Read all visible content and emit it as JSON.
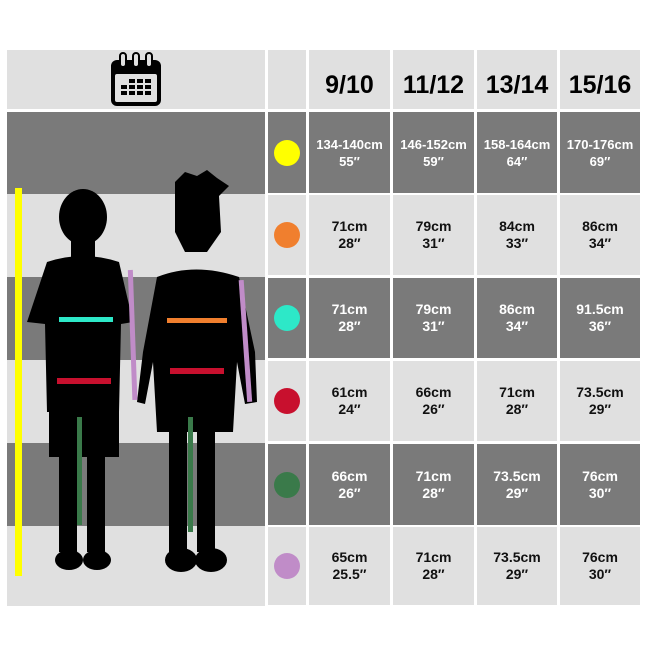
{
  "header": {
    "icon": "calendar-icon",
    "sizes": [
      "9/10",
      "11/12",
      "13/14",
      "15/16"
    ]
  },
  "rows": [
    {
      "color": "#ffff00",
      "values": [
        [
          "134-140cm",
          "55″"
        ],
        [
          "146-152cm",
          "59″"
        ],
        [
          "158-164cm",
          "64″"
        ],
        [
          "170-176cm",
          "69″"
        ]
      ]
    },
    {
      "color": "#f07f2e",
      "values": [
        [
          "71cm",
          "28″"
        ],
        [
          "79cm",
          "31″"
        ],
        [
          "84cm",
          "33″"
        ],
        [
          "86cm",
          "34″"
        ]
      ]
    },
    {
      "color": "#2de8c8",
      "values": [
        [
          "71cm",
          "28″"
        ],
        [
          "79cm",
          "31″"
        ],
        [
          "86cm",
          "34″"
        ],
        [
          "91.5cm",
          "36″"
        ]
      ]
    },
    {
      "color": "#c8102e",
      "values": [
        [
          "61cm",
          "24″"
        ],
        [
          "66cm",
          "26″"
        ],
        [
          "71cm",
          "28″"
        ],
        [
          "73.5cm",
          "29″"
        ]
      ]
    },
    {
      "color": "#3a7a4a",
      "values": [
        [
          "66cm",
          "26″"
        ],
        [
          "71cm",
          "28″"
        ],
        [
          "73.5cm",
          "29″"
        ],
        [
          "76cm",
          "30″"
        ]
      ]
    },
    {
      "color": "#c08cc8",
      "values": [
        [
          "65cm",
          "25.5″"
        ],
        [
          "71cm",
          "28″"
        ],
        [
          "73.5cm",
          "29″"
        ],
        [
          "76cm",
          "30″"
        ]
      ]
    }
  ],
  "colors": {
    "dark_row": "#7a7a7a",
    "light_row": "#e0e0e0"
  }
}
